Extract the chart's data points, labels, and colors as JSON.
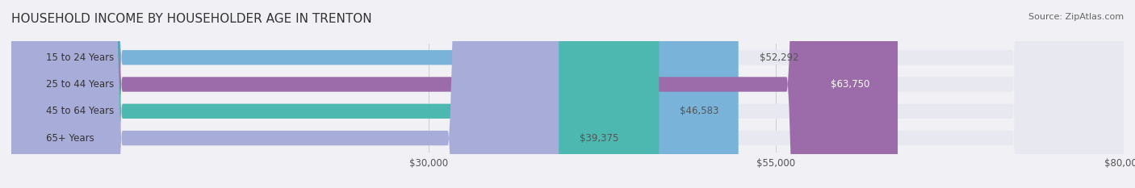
{
  "title": "HOUSEHOLD INCOME BY HOUSEHOLDER AGE IN TRENTON",
  "source": "Source: ZipAtlas.com",
  "categories": [
    "15 to 24 Years",
    "25 to 44 Years",
    "45 to 64 Years",
    "65+ Years"
  ],
  "values": [
    52292,
    63750,
    46583,
    39375
  ],
  "bar_colors": [
    "#7ab3d9",
    "#9b6baa",
    "#4db8b0",
    "#a8acd8"
  ],
  "bar_edge_colors": [
    "#7ab3d9",
    "#9b6baa",
    "#4db8b0",
    "#a8acd8"
  ],
  "label_colors": [
    "#555555",
    "#ffffff",
    "#555555",
    "#555555"
  ],
  "value_labels": [
    "$52,292",
    "$63,750",
    "$46,583",
    "$39,375"
  ],
  "xlim": [
    0,
    80000
  ],
  "xticks": [
    30000,
    55000,
    80000
  ],
  "xtick_labels": [
    "$30,000",
    "$55,000",
    "$80,000"
  ],
  "background_color": "#f0f0f5",
  "bar_background_color": "#e8e8f0",
  "title_fontsize": 11,
  "bar_height": 0.55,
  "figsize": [
    14.06,
    2.33
  ]
}
